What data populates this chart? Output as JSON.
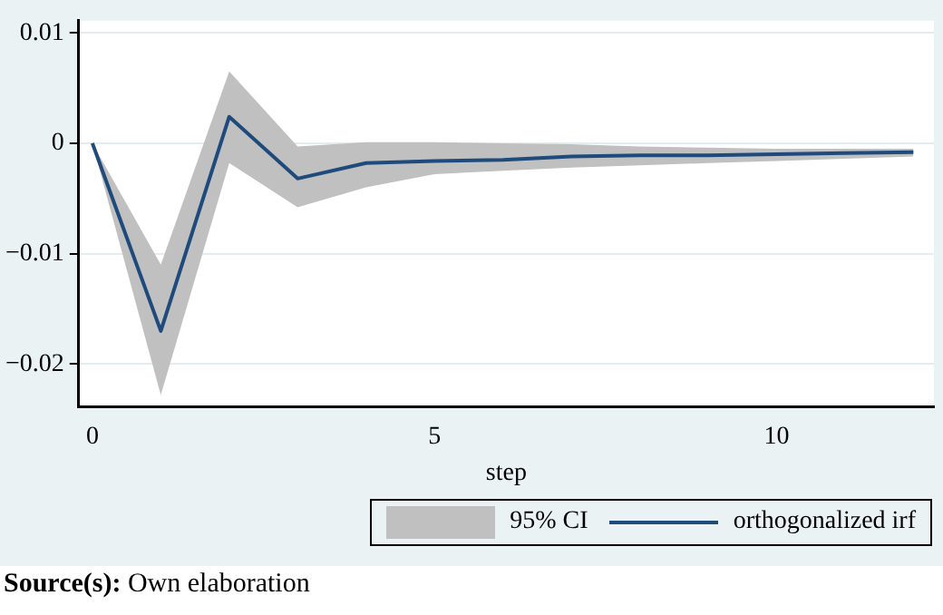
{
  "chart_data": {
    "type": "line",
    "xlabel": "step",
    "x": [
      0,
      1,
      2,
      3,
      4,
      5,
      6,
      7,
      8,
      9,
      10,
      11,
      12
    ],
    "series": [
      {
        "name": "orthogonalized irf",
        "type": "line",
        "color": "#1f4a7c",
        "values": [
          0,
          -0.017,
          0.0024,
          -0.0032,
          -0.0018,
          -0.0016,
          -0.0015,
          -0.0012,
          -0.0011,
          -0.0011,
          -0.001,
          -0.0009,
          -0.0008
        ],
        "lower": [
          0,
          -0.0228,
          -0.0018,
          -0.0058,
          -0.004,
          -0.0028,
          -0.0025,
          -0.0022,
          -0.002,
          -0.0018,
          -0.0016,
          -0.0014,
          -0.0012
        ],
        "upper": [
          0,
          -0.011,
          0.0065,
          -0.0003,
          0.0001,
          0.0001,
          0,
          -0.0001,
          -0.0003,
          -0.0004,
          -0.0005,
          -0.0005,
          -0.0005
        ]
      }
    ],
    "xlim": [
      -0.2,
      12.3
    ],
    "xticks": [
      0,
      5,
      10
    ],
    "ylim": [
      -0.0239,
      0.0111
    ],
    "yticks": [
      -0.02,
      -0.01,
      0,
      0.01
    ],
    "grid": "y",
    "legend": "bottom",
    "marker": "none",
    "line_style": "solid",
    "annotations": [
      "95% CI",
      "Source(s): Own elaboration"
    ]
  }
}
